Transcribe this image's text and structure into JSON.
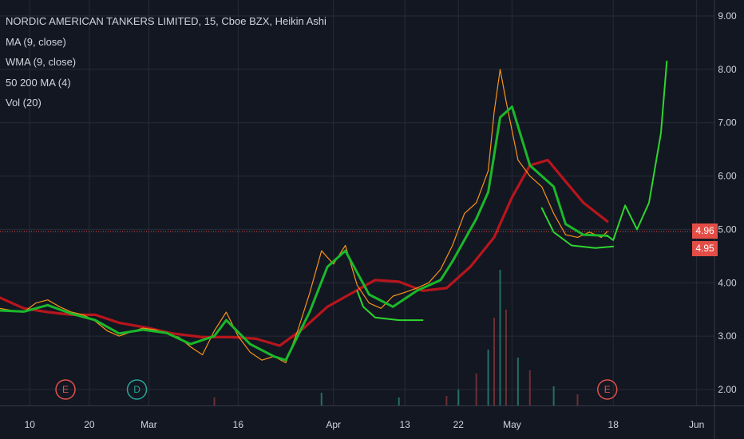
{
  "legend": {
    "title": "NORDIC AMERICAN TANKERS LIMITED, 15, Cboe BZX, Heikin Ashi",
    "ma": "MA (9, close)",
    "wma": "WMA (9, close)",
    "ma50200": "50 200 MA (4)",
    "vol": "Vol (20)"
  },
  "colors": {
    "background": "#131722",
    "grid": "#262b37",
    "text": "#d1d4dc",
    "price": "#f7931a",
    "ma_green": "#1bb82a",
    "ma_red": "#b8151c",
    "projection": "#2ed62e",
    "price_line": "#e74c3c",
    "tag": "#e34d46"
  },
  "price_tags": [
    "4.96",
    "4.95"
  ],
  "chart_data": {
    "type": "line",
    "title": "NORDIC AMERICAN TANKERS LIMITED, 15, Cboe BZX, Heikin Ashi",
    "ylim": [
      1.7,
      9.3
    ],
    "y_ticks": [
      "9.00",
      "8.00",
      "7.00",
      "6.00",
      "5.00",
      "4.00",
      "3.00",
      "2.00"
    ],
    "y_tick_values": [
      9,
      8,
      7,
      6,
      5,
      4,
      3,
      2
    ],
    "x_ticks": [
      "10",
      "20",
      "Mar",
      "16",
      "Apr",
      "13",
      "22",
      "May",
      "18",
      "Jun"
    ],
    "x_tick_dates": [
      "2020-02-10",
      "2020-02-20",
      "2020-03-01",
      "2020-03-16",
      "2020-04-01",
      "2020-04-13",
      "2020-04-22",
      "2020-05-01",
      "2020-05-18",
      "2020-06-01"
    ],
    "xlim": [
      "2020-02-05",
      "2020-06-04"
    ],
    "grid": true,
    "current_price": 4.96,
    "series": [
      {
        "role": "price",
        "points": [
          [
            "2020-02-05",
            3.52
          ],
          [
            "2020-02-07",
            3.48
          ],
          [
            "2020-02-09",
            3.45
          ],
          [
            "2020-02-11",
            3.62
          ],
          [
            "2020-02-13",
            3.68
          ],
          [
            "2020-02-15",
            3.55
          ],
          [
            "2020-02-17",
            3.45
          ],
          [
            "2020-02-19",
            3.4
          ],
          [
            "2020-02-21",
            3.28
          ],
          [
            "2020-02-23",
            3.1
          ],
          [
            "2020-02-25",
            3.0
          ],
          [
            "2020-02-27",
            3.08
          ],
          [
            "2020-02-29",
            3.15
          ],
          [
            "2020-03-02",
            3.12
          ],
          [
            "2020-03-04",
            3.05
          ],
          [
            "2020-03-06",
            2.98
          ],
          [
            "2020-03-08",
            2.8
          ],
          [
            "2020-03-10",
            2.65
          ],
          [
            "2020-03-12",
            3.1
          ],
          [
            "2020-03-14",
            3.45
          ],
          [
            "2020-03-16",
            3.0
          ],
          [
            "2020-03-18",
            2.7
          ],
          [
            "2020-03-20",
            2.55
          ],
          [
            "2020-03-22",
            2.62
          ],
          [
            "2020-03-24",
            2.5
          ],
          [
            "2020-03-26",
            3.1
          ],
          [
            "2020-03-28",
            3.8
          ],
          [
            "2020-03-30",
            4.6
          ],
          [
            "2020-04-01",
            4.35
          ],
          [
            "2020-04-03",
            4.7
          ],
          [
            "2020-04-05",
            3.95
          ],
          [
            "2020-04-07",
            3.62
          ],
          [
            "2020-04-09",
            3.52
          ],
          [
            "2020-04-11",
            3.75
          ],
          [
            "2020-04-13",
            3.82
          ],
          [
            "2020-04-15",
            3.9
          ],
          [
            "2020-04-17",
            4.0
          ],
          [
            "2020-04-19",
            4.25
          ],
          [
            "2020-04-21",
            4.7
          ],
          [
            "2020-04-23",
            5.3
          ],
          [
            "2020-04-25",
            5.5
          ],
          [
            "2020-04-27",
            6.1
          ],
          [
            "2020-04-28",
            7.2
          ],
          [
            "2020-04-29",
            8.0
          ],
          [
            "2020-04-30",
            7.4
          ],
          [
            "2020-05-02",
            6.3
          ],
          [
            "2020-05-04",
            6.0
          ],
          [
            "2020-05-06",
            5.8
          ],
          [
            "2020-05-08",
            5.3
          ],
          [
            "2020-05-10",
            4.9
          ],
          [
            "2020-05-12",
            4.85
          ],
          [
            "2020-05-14",
            4.95
          ],
          [
            "2020-05-16",
            4.85
          ],
          [
            "2020-05-17",
            4.96
          ]
        ]
      },
      {
        "role": "ma_fast",
        "points": [
          [
            "2020-02-05",
            3.48
          ],
          [
            "2020-02-09",
            3.46
          ],
          [
            "2020-02-13",
            3.58
          ],
          [
            "2020-02-17",
            3.42
          ],
          [
            "2020-02-21",
            3.3
          ],
          [
            "2020-02-25",
            3.05
          ],
          [
            "2020-02-29",
            3.12
          ],
          [
            "2020-03-04",
            3.06
          ],
          [
            "2020-03-08",
            2.85
          ],
          [
            "2020-03-12",
            3.0
          ],
          [
            "2020-03-14",
            3.3
          ],
          [
            "2020-03-18",
            2.85
          ],
          [
            "2020-03-22",
            2.62
          ],
          [
            "2020-03-24",
            2.55
          ],
          [
            "2020-03-28",
            3.45
          ],
          [
            "2020-03-31",
            4.3
          ],
          [
            "2020-04-03",
            4.6
          ],
          [
            "2020-04-07",
            3.78
          ],
          [
            "2020-04-11",
            3.55
          ],
          [
            "2020-04-15",
            3.85
          ],
          [
            "2020-04-19",
            4.05
          ],
          [
            "2020-04-21",
            4.4
          ],
          [
            "2020-04-25",
            5.2
          ],
          [
            "2020-04-27",
            5.7
          ],
          [
            "2020-04-29",
            7.1
          ],
          [
            "2020-05-01",
            7.3
          ],
          [
            "2020-05-04",
            6.2
          ],
          [
            "2020-05-08",
            5.8
          ],
          [
            "2020-05-10",
            5.1
          ],
          [
            "2020-05-13",
            4.9
          ],
          [
            "2020-05-17",
            4.88
          ]
        ]
      },
      {
        "role": "ma_slow",
        "points": [
          [
            "2020-02-05",
            3.72
          ],
          [
            "2020-02-09",
            3.52
          ],
          [
            "2020-02-13",
            3.45
          ],
          [
            "2020-02-17",
            3.4
          ],
          [
            "2020-02-21",
            3.4
          ],
          [
            "2020-02-25",
            3.25
          ],
          [
            "2020-03-01",
            3.15
          ],
          [
            "2020-03-05",
            3.05
          ],
          [
            "2020-03-10",
            2.98
          ],
          [
            "2020-03-15",
            2.98
          ],
          [
            "2020-03-19",
            2.95
          ],
          [
            "2020-03-23",
            2.82
          ],
          [
            "2020-03-27",
            3.15
          ],
          [
            "2020-03-31",
            3.55
          ],
          [
            "2020-04-04",
            3.8
          ],
          [
            "2020-04-08",
            4.05
          ],
          [
            "2020-04-12",
            4.02
          ],
          [
            "2020-04-16",
            3.85
          ],
          [
            "2020-04-20",
            3.9
          ],
          [
            "2020-04-24",
            4.3
          ],
          [
            "2020-04-28",
            4.85
          ],
          [
            "2020-05-01",
            5.6
          ],
          [
            "2020-05-04",
            6.2
          ],
          [
            "2020-05-07",
            6.3
          ],
          [
            "2020-05-10",
            5.9
          ],
          [
            "2020-05-13",
            5.5
          ],
          [
            "2020-05-17",
            5.15
          ]
        ]
      },
      {
        "role": "support",
        "points": [
          [
            "2020-04-05",
            3.85
          ],
          [
            "2020-04-06",
            3.55
          ],
          [
            "2020-04-08",
            3.35
          ],
          [
            "2020-04-12",
            3.3
          ],
          [
            "2020-04-16",
            3.3
          ]
        ]
      },
      {
        "role": "support",
        "points": [
          [
            "2020-05-06",
            5.4
          ],
          [
            "2020-05-08",
            4.95
          ],
          [
            "2020-05-11",
            4.7
          ],
          [
            "2020-05-15",
            4.65
          ],
          [
            "2020-05-18",
            4.68
          ]
        ]
      },
      {
        "role": "projection",
        "points": [
          [
            "2020-05-17",
            4.88
          ],
          [
            "2020-05-18",
            4.8
          ],
          [
            "2020-05-20",
            5.45
          ],
          [
            "2020-05-22",
            5.0
          ],
          [
            "2020-05-24",
            5.5
          ],
          [
            "2020-05-26",
            6.8
          ],
          [
            "2020-05-27",
            8.15
          ]
        ]
      }
    ],
    "events": [
      {
        "label": "E",
        "date": "2020-02-16",
        "color": "#e0514a"
      },
      {
        "label": "D",
        "date": "2020-02-28",
        "color": "#26a69a"
      },
      {
        "label": "E",
        "date": "2020-05-17",
        "color": "#e0514a"
      }
    ],
    "volume": [
      [
        "2020-04-20",
        0.06
      ],
      [
        "2020-04-22",
        0.1
      ],
      [
        "2020-04-25",
        0.2
      ],
      [
        "2020-04-27",
        0.35
      ],
      [
        "2020-04-28",
        0.55
      ],
      [
        "2020-04-29",
        0.85
      ],
      [
        "2020-04-30",
        0.6
      ],
      [
        "2020-05-02",
        0.3
      ],
      [
        "2020-05-04",
        0.22
      ],
      [
        "2020-05-08",
        0.12
      ],
      [
        "2020-05-12",
        0.07
      ],
      [
        "2020-03-30",
        0.08
      ],
      [
        "2020-03-12",
        0.05
      ],
      [
        "2020-04-12",
        0.05
      ]
    ]
  }
}
